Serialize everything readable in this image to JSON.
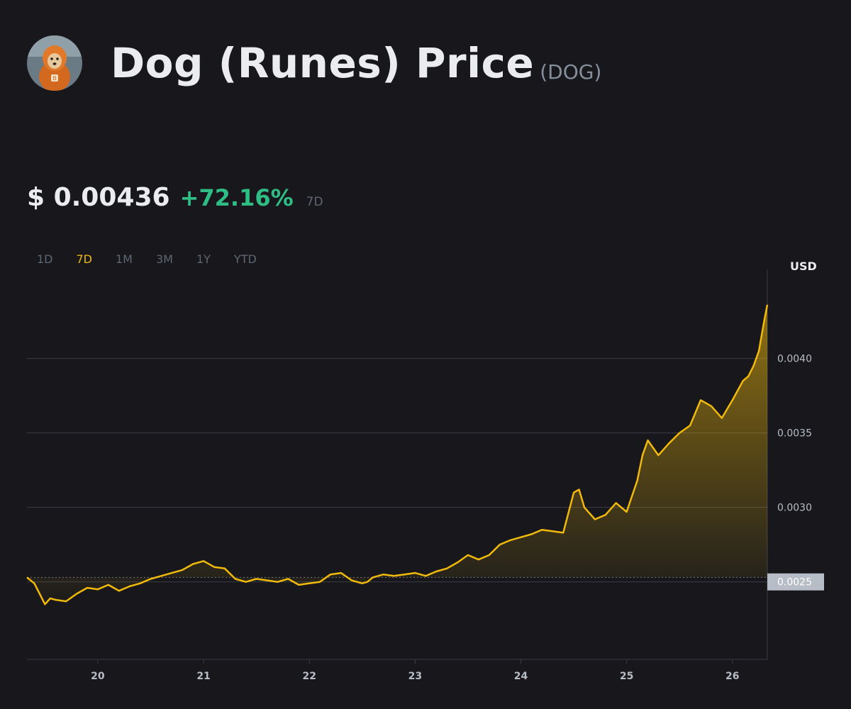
{
  "header": {
    "title": "Dog (Runes) Price",
    "symbol": "(DOG)",
    "avatar_icon": "dog-avatar-icon"
  },
  "price": {
    "value": "$ 0.00436",
    "change": "+72.16%",
    "period": "7D",
    "change_color": "#2ebd85"
  },
  "tabs": [
    {
      "label": "1D",
      "active": false
    },
    {
      "label": "7D",
      "active": true
    },
    {
      "label": "1M",
      "active": false
    },
    {
      "label": "3M",
      "active": false
    },
    {
      "label": "1Y",
      "active": false
    },
    {
      "label": "YTD",
      "active": false
    }
  ],
  "colors": {
    "background": "#18181c",
    "accent": "#f0b90b",
    "positive": "#2ebd85",
    "muted": "#5e6673"
  },
  "chart_data": {
    "type": "area",
    "unit": "USD",
    "x_ticks": [
      "20",
      "21",
      "22",
      "23",
      "24",
      "25",
      "26"
    ],
    "y_ticks": [
      "0.0025",
      "0.0030",
      "0.0035",
      "0.0040"
    ],
    "y_tick_values": [
      0.0025,
      0.003,
      0.0035,
      0.004
    ],
    "current_value_label": "0.0025",
    "baseline": 0.00253,
    "xlim": [
      19.33,
      26.33
    ],
    "ylim": [
      0.00198,
      0.00455
    ],
    "grid": true,
    "series": [
      {
        "x": [
          19.33,
          19.4,
          19.5,
          19.55,
          19.6,
          19.7,
          19.8,
          19.9,
          20.0,
          20.1,
          20.2,
          20.3,
          20.4,
          20.5,
          20.6,
          20.7,
          20.8,
          20.9,
          21.0,
          21.1,
          21.2,
          21.3,
          21.4,
          21.5,
          21.6,
          21.7,
          21.8,
          21.9,
          22.0,
          22.1,
          22.2,
          22.3,
          22.4,
          22.5,
          22.55,
          22.6,
          22.7,
          22.8,
          22.9,
          23.0,
          23.1,
          23.2,
          23.3,
          23.4,
          23.5,
          23.6,
          23.7,
          23.8,
          23.9,
          24.0,
          24.1,
          24.2,
          24.3,
          24.4,
          24.5,
          24.55,
          24.6,
          24.7,
          24.8,
          24.9,
          25.0,
          25.1,
          25.15,
          25.2,
          25.3,
          25.4,
          25.5,
          25.6,
          25.7,
          25.8,
          25.9,
          26.0,
          26.1,
          26.15,
          26.2,
          26.25,
          26.3,
          26.33
        ],
        "values": [
          0.00253,
          0.00249,
          0.00235,
          0.00239,
          0.00238,
          0.00237,
          0.00242,
          0.00246,
          0.00245,
          0.00248,
          0.00244,
          0.00247,
          0.00249,
          0.00252,
          0.00254,
          0.00256,
          0.00258,
          0.00262,
          0.00264,
          0.0026,
          0.00259,
          0.00252,
          0.0025,
          0.00252,
          0.00251,
          0.0025,
          0.00252,
          0.00248,
          0.00249,
          0.0025,
          0.00255,
          0.00256,
          0.00251,
          0.00249,
          0.0025,
          0.00253,
          0.00255,
          0.00254,
          0.00255,
          0.00256,
          0.00254,
          0.00257,
          0.00259,
          0.00263,
          0.00268,
          0.00265,
          0.00268,
          0.00275,
          0.00278,
          0.0028,
          0.00282,
          0.00285,
          0.00284,
          0.00283,
          0.0031,
          0.00312,
          0.003,
          0.00292,
          0.00295,
          0.00303,
          0.00297,
          0.00318,
          0.00335,
          0.00345,
          0.00335,
          0.00343,
          0.0035,
          0.00355,
          0.00372,
          0.00368,
          0.0036,
          0.00372,
          0.00385,
          0.00388,
          0.00395,
          0.00405,
          0.00425,
          0.00436
        ]
      }
    ]
  }
}
